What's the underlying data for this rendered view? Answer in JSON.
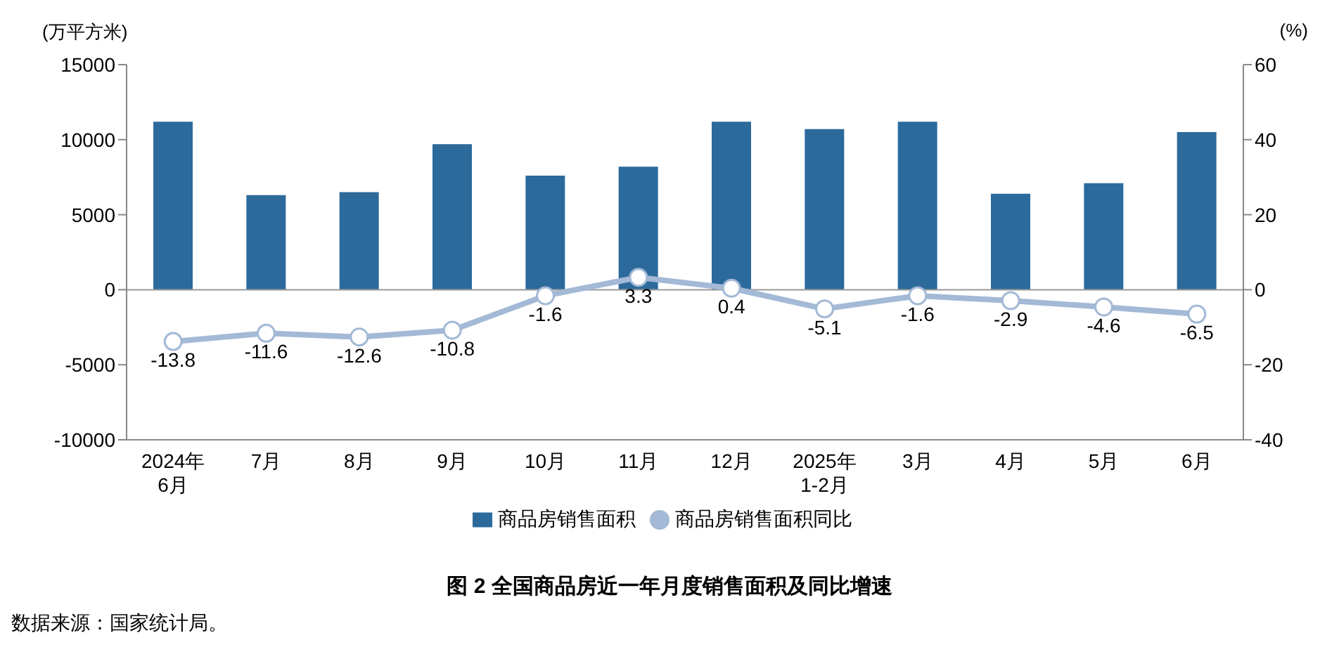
{
  "chart_data": {
    "type": "bar",
    "title": "图 2 全国商品房近一年月度销售面积及同比增速",
    "ylabel": "(万平方米)",
    "y2label": "(%)",
    "annotations": [
      "数据来源：国家统计局。"
    ],
    "categories": [
      "2024年\n6月",
      "7月",
      "8月",
      "9月",
      "10月",
      "11月",
      "12月",
      "2025年\n1-2月",
      "3月",
      "4月",
      "5月",
      "6月"
    ],
    "series": [
      {
        "name": "商品房销售面积",
        "color": "#2c6a9c",
        "values": [
          11200,
          6300,
          6500,
          9700,
          7600,
          8200,
          11200,
          10700,
          11200,
          6400,
          7100,
          10500
        ]
      },
      {
        "name": "商品房销售面积同比",
        "type": "line",
        "axis": "y2",
        "color": "#a3b9d6",
        "marker": "circle",
        "data_labels": true,
        "values": [
          -13.8,
          -11.6,
          -12.6,
          -10.8,
          -1.6,
          3.3,
          0.4,
          -5.1,
          -1.6,
          -2.9,
          -4.6,
          -6.5
        ]
      }
    ],
    "ylim": [
      -10000,
      15000
    ],
    "yticks": [
      -10000,
      -5000,
      0,
      5000,
      10000,
      15000
    ],
    "y2lim": [
      -40,
      60
    ],
    "y2ticks": [
      -40,
      -20,
      0,
      20,
      40,
      60
    ],
    "ref_lines": [
      {
        "axis": "y",
        "value": 0,
        "color": "#999999"
      }
    ],
    "legend": "bottom"
  }
}
